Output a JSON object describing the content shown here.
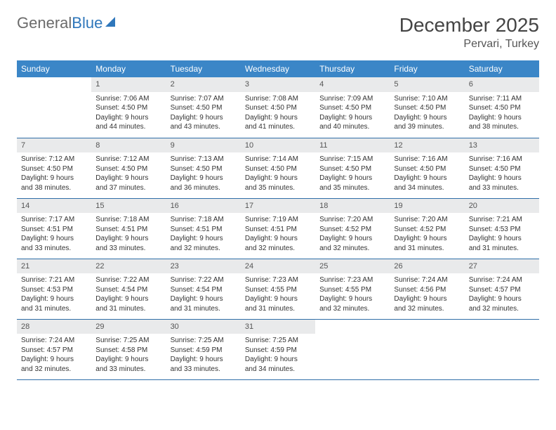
{
  "brand": {
    "part1": "General",
    "part2": "Blue"
  },
  "title": "December 2025",
  "location": "Pervari, Turkey",
  "colors": {
    "header_bg": "#3b86c7",
    "row_border": "#2f6ea8",
    "daynum_bg": "#e9eaeb",
    "brand_gray": "#6b6b6b",
    "brand_blue": "#2f77bb"
  },
  "weekdays": [
    "Sunday",
    "Monday",
    "Tuesday",
    "Wednesday",
    "Thursday",
    "Friday",
    "Saturday"
  ],
  "weeks": [
    [
      null,
      {
        "n": "1",
        "sunrise": "7:06 AM",
        "sunset": "4:50 PM",
        "daylight": "9 hours and 44 minutes."
      },
      {
        "n": "2",
        "sunrise": "7:07 AM",
        "sunset": "4:50 PM",
        "daylight": "9 hours and 43 minutes."
      },
      {
        "n": "3",
        "sunrise": "7:08 AM",
        "sunset": "4:50 PM",
        "daylight": "9 hours and 41 minutes."
      },
      {
        "n": "4",
        "sunrise": "7:09 AM",
        "sunset": "4:50 PM",
        "daylight": "9 hours and 40 minutes."
      },
      {
        "n": "5",
        "sunrise": "7:10 AM",
        "sunset": "4:50 PM",
        "daylight": "9 hours and 39 minutes."
      },
      {
        "n": "6",
        "sunrise": "7:11 AM",
        "sunset": "4:50 PM",
        "daylight": "9 hours and 38 minutes."
      }
    ],
    [
      {
        "n": "7",
        "sunrise": "7:12 AM",
        "sunset": "4:50 PM",
        "daylight": "9 hours and 38 minutes."
      },
      {
        "n": "8",
        "sunrise": "7:12 AM",
        "sunset": "4:50 PM",
        "daylight": "9 hours and 37 minutes."
      },
      {
        "n": "9",
        "sunrise": "7:13 AM",
        "sunset": "4:50 PM",
        "daylight": "9 hours and 36 minutes."
      },
      {
        "n": "10",
        "sunrise": "7:14 AM",
        "sunset": "4:50 PM",
        "daylight": "9 hours and 35 minutes."
      },
      {
        "n": "11",
        "sunrise": "7:15 AM",
        "sunset": "4:50 PM",
        "daylight": "9 hours and 35 minutes."
      },
      {
        "n": "12",
        "sunrise": "7:16 AM",
        "sunset": "4:50 PM",
        "daylight": "9 hours and 34 minutes."
      },
      {
        "n": "13",
        "sunrise": "7:16 AM",
        "sunset": "4:50 PM",
        "daylight": "9 hours and 33 minutes."
      }
    ],
    [
      {
        "n": "14",
        "sunrise": "7:17 AM",
        "sunset": "4:51 PM",
        "daylight": "9 hours and 33 minutes."
      },
      {
        "n": "15",
        "sunrise": "7:18 AM",
        "sunset": "4:51 PM",
        "daylight": "9 hours and 33 minutes."
      },
      {
        "n": "16",
        "sunrise": "7:18 AM",
        "sunset": "4:51 PM",
        "daylight": "9 hours and 32 minutes."
      },
      {
        "n": "17",
        "sunrise": "7:19 AM",
        "sunset": "4:51 PM",
        "daylight": "9 hours and 32 minutes."
      },
      {
        "n": "18",
        "sunrise": "7:20 AM",
        "sunset": "4:52 PM",
        "daylight": "9 hours and 32 minutes."
      },
      {
        "n": "19",
        "sunrise": "7:20 AM",
        "sunset": "4:52 PM",
        "daylight": "9 hours and 31 minutes."
      },
      {
        "n": "20",
        "sunrise": "7:21 AM",
        "sunset": "4:53 PM",
        "daylight": "9 hours and 31 minutes."
      }
    ],
    [
      {
        "n": "21",
        "sunrise": "7:21 AM",
        "sunset": "4:53 PM",
        "daylight": "9 hours and 31 minutes."
      },
      {
        "n": "22",
        "sunrise": "7:22 AM",
        "sunset": "4:54 PM",
        "daylight": "9 hours and 31 minutes."
      },
      {
        "n": "23",
        "sunrise": "7:22 AM",
        "sunset": "4:54 PM",
        "daylight": "9 hours and 31 minutes."
      },
      {
        "n": "24",
        "sunrise": "7:23 AM",
        "sunset": "4:55 PM",
        "daylight": "9 hours and 31 minutes."
      },
      {
        "n": "25",
        "sunrise": "7:23 AM",
        "sunset": "4:55 PM",
        "daylight": "9 hours and 32 minutes."
      },
      {
        "n": "26",
        "sunrise": "7:24 AM",
        "sunset": "4:56 PM",
        "daylight": "9 hours and 32 minutes."
      },
      {
        "n": "27",
        "sunrise": "7:24 AM",
        "sunset": "4:57 PM",
        "daylight": "9 hours and 32 minutes."
      }
    ],
    [
      {
        "n": "28",
        "sunrise": "7:24 AM",
        "sunset": "4:57 PM",
        "daylight": "9 hours and 32 minutes."
      },
      {
        "n": "29",
        "sunrise": "7:25 AM",
        "sunset": "4:58 PM",
        "daylight": "9 hours and 33 minutes."
      },
      {
        "n": "30",
        "sunrise": "7:25 AM",
        "sunset": "4:59 PM",
        "daylight": "9 hours and 33 minutes."
      },
      {
        "n": "31",
        "sunrise": "7:25 AM",
        "sunset": "4:59 PM",
        "daylight": "9 hours and 34 minutes."
      },
      null,
      null,
      null
    ]
  ],
  "labels": {
    "sunrise": "Sunrise:",
    "sunset": "Sunset:",
    "daylight": "Daylight:"
  }
}
